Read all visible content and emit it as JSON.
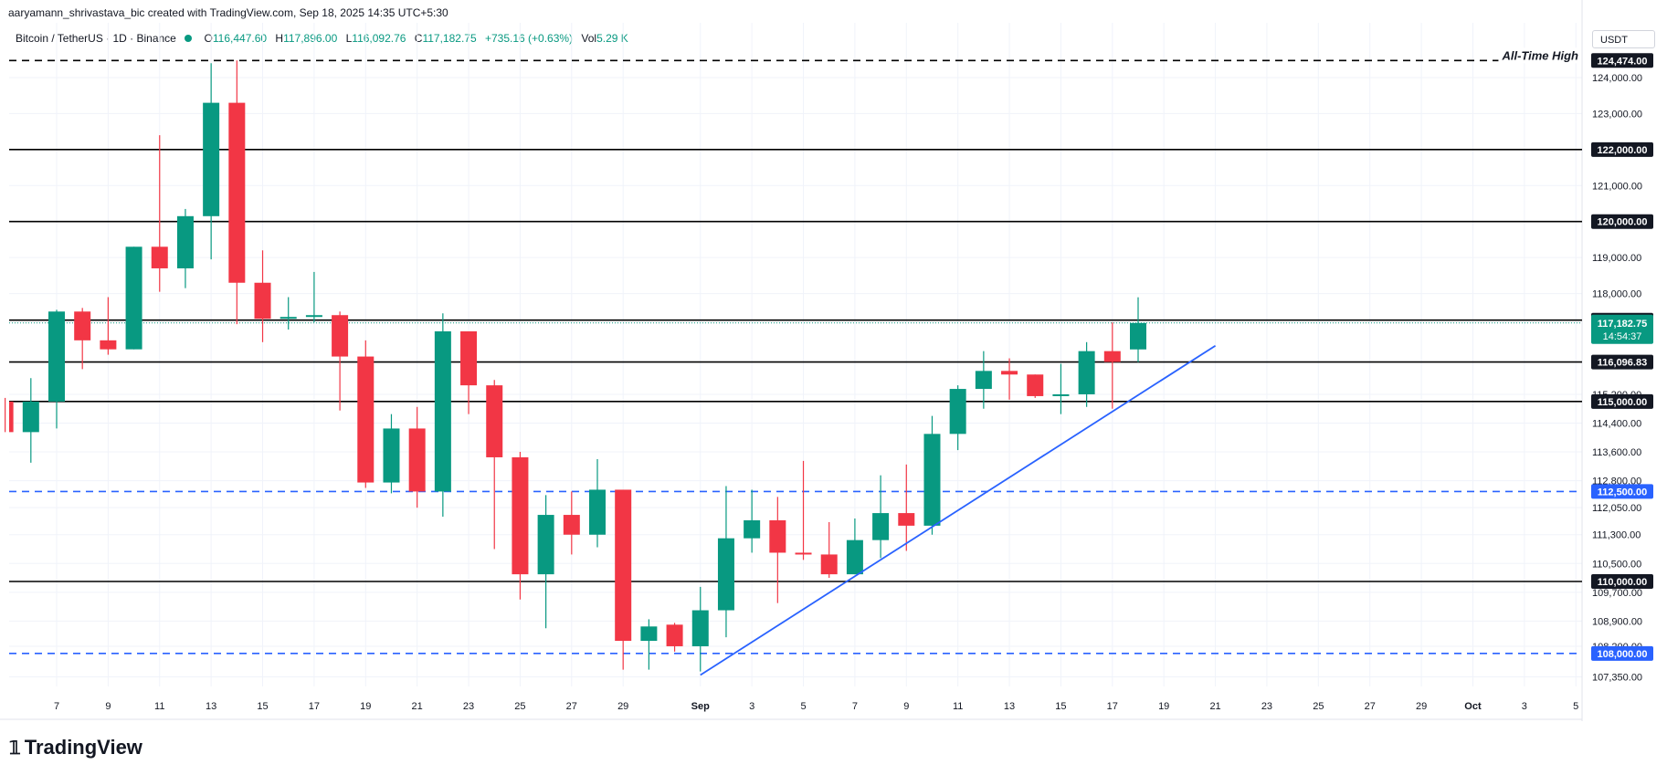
{
  "header": {
    "credit": "aaryamann_shrivastava_bic created with TradingView.com, Sep 18, 2025 14:35 UTC+5:30",
    "symbol": "Bitcoin / TetherUS · 1D · Binance",
    "open_label": "O",
    "open": "116,447.60",
    "high_label": "H",
    "high": "117,896.00",
    "low_label": "L",
    "low": "116,092.76",
    "close_label": "C",
    "close": "117,182.75",
    "change": "+735.16 (+0.63%)",
    "vol_label": "Vol",
    "vol": "5.29 K"
  },
  "currency": "USDT",
  "logo_text": "TradingView",
  "colors": {
    "up": "#089981",
    "down": "#f23645",
    "trend": "#2962ff",
    "axis_text": "#131722",
    "grid": "#f0f3fa"
  },
  "chart_data": {
    "type": "candlestick",
    "y_axis_ticks": [
      "124,000.00",
      "123,000.00",
      "121,000.00",
      "119,000.00",
      "118,000.00",
      "115,200.00",
      "114,400.00",
      "113,600.00",
      "112,800.00",
      "112,050.00",
      "111,300.00",
      "110,500.00",
      "109,700.00",
      "108,900.00",
      "108,200.00",
      "107,350.00"
    ],
    "x_axis_ticks": [
      {
        "day": 7,
        "label": "7"
      },
      {
        "day": 9,
        "label": "9"
      },
      {
        "day": 11,
        "label": "11"
      },
      {
        "day": 13,
        "label": "13"
      },
      {
        "day": 15,
        "label": "15"
      },
      {
        "day": 17,
        "label": "17"
      },
      {
        "day": 19,
        "label": "19"
      },
      {
        "day": 21,
        "label": "21"
      },
      {
        "day": 23,
        "label": "23"
      },
      {
        "day": 25,
        "label": "25"
      },
      {
        "day": 27,
        "label": "27"
      },
      {
        "day": 29,
        "label": "29"
      },
      {
        "day": 32,
        "label": "Sep"
      },
      {
        "day": 34,
        "label": "3"
      },
      {
        "day": 36,
        "label": "5"
      },
      {
        "day": 38,
        "label": "7"
      },
      {
        "day": 40,
        "label": "9"
      },
      {
        "day": 42,
        "label": "11"
      },
      {
        "day": 44,
        "label": "13"
      },
      {
        "day": 46,
        "label": "15"
      },
      {
        "day": 48,
        "label": "17"
      },
      {
        "day": 50,
        "label": "19"
      },
      {
        "day": 52,
        "label": "21"
      },
      {
        "day": 54,
        "label": "23"
      },
      {
        "day": 56,
        "label": "25"
      },
      {
        "day": 58,
        "label": "27"
      },
      {
        "day": 60,
        "label": "29"
      },
      {
        "day": 62,
        "label": "Oct"
      },
      {
        "day": 64,
        "label": "3"
      },
      {
        "day": 66,
        "label": "5"
      }
    ],
    "candles": [
      {
        "day": 5,
        "o": 115000,
        "h": 115100,
        "l": 114150,
        "c": 114150
      },
      {
        "day": 6,
        "o": 114150,
        "h": 115650,
        "l": 113300,
        "c": 115000
      },
      {
        "day": 7,
        "o": 115000,
        "h": 117550,
        "l": 114250,
        "c": 117500
      },
      {
        "day": 8,
        "o": 117500,
        "h": 117600,
        "l": 115900,
        "c": 116700
      },
      {
        "day": 9,
        "o": 116700,
        "h": 117900,
        "l": 116300,
        "c": 116450
      },
      {
        "day": 10,
        "o": 116450,
        "h": 119300,
        "l": 116450,
        "c": 119300
      },
      {
        "day": 11,
        "o": 119300,
        "h": 122400,
        "l": 118050,
        "c": 118700
      },
      {
        "day": 12,
        "o": 118700,
        "h": 120350,
        "l": 118150,
        "c": 120150
      },
      {
        "day": 13,
        "o": 120150,
        "h": 124400,
        "l": 118950,
        "c": 123300
      },
      {
        "day": 14,
        "o": 123300,
        "h": 124474,
        "l": 117150,
        "c": 118300
      },
      {
        "day": 15,
        "o": 118300,
        "h": 119200,
        "l": 116650,
        "c": 117300
      },
      {
        "day": 16,
        "o": 117300,
        "h": 117900,
        "l": 117000,
        "c": 117350
      },
      {
        "day": 17,
        "o": 117350,
        "h": 118600,
        "l": 117200,
        "c": 117400
      },
      {
        "day": 18,
        "o": 117400,
        "h": 117500,
        "l": 114750,
        "c": 116250
      },
      {
        "day": 19,
        "o": 116250,
        "h": 116700,
        "l": 112600,
        "c": 112750
      },
      {
        "day": 20,
        "o": 112750,
        "h": 114650,
        "l": 112450,
        "c": 114250
      },
      {
        "day": 21,
        "o": 114250,
        "h": 114850,
        "l": 112050,
        "c": 112500
      },
      {
        "day": 22,
        "o": 112500,
        "h": 117450,
        "l": 111800,
        "c": 116950
      },
      {
        "day": 23,
        "o": 116950,
        "h": 116950,
        "l": 114650,
        "c": 115450
      },
      {
        "day": 24,
        "o": 115450,
        "h": 115600,
        "l": 110900,
        "c": 113450
      },
      {
        "day": 25,
        "o": 113450,
        "h": 113600,
        "l": 109500,
        "c": 110200
      },
      {
        "day": 26,
        "o": 110200,
        "h": 112400,
        "l": 108700,
        "c": 111850
      },
      {
        "day": 27,
        "o": 111850,
        "h": 112500,
        "l": 110750,
        "c": 111300
      },
      {
        "day": 28,
        "o": 111300,
        "h": 113400,
        "l": 110950,
        "c": 112550
      },
      {
        "day": 29,
        "o": 112550,
        "h": 112550,
        "l": 107550,
        "c": 108350
      },
      {
        "day": 30,
        "o": 108350,
        "h": 108950,
        "l": 107550,
        "c": 108750
      },
      {
        "day": 31,
        "o": 108800,
        "h": 108850,
        "l": 108050,
        "c": 108200
      },
      {
        "day": 32,
        "o": 108200,
        "h": 109850,
        "l": 107500,
        "c": 109200
      },
      {
        "day": 33,
        "o": 109200,
        "h": 112650,
        "l": 108450,
        "c": 111200
      },
      {
        "day": 34,
        "o": 111200,
        "h": 112550,
        "l": 110800,
        "c": 111700
      },
      {
        "day": 35,
        "o": 111700,
        "h": 112350,
        "l": 109400,
        "c": 110800
      },
      {
        "day": 36,
        "o": 110800,
        "h": 113350,
        "l": 110600,
        "c": 110750
      },
      {
        "day": 37,
        "o": 110750,
        "h": 111650,
        "l": 110100,
        "c": 110200
      },
      {
        "day": 38,
        "o": 110200,
        "h": 111750,
        "l": 110200,
        "c": 111150
      },
      {
        "day": 39,
        "o": 111150,
        "h": 112950,
        "l": 110650,
        "c": 111900
      },
      {
        "day": 40,
        "o": 111900,
        "h": 113250,
        "l": 110850,
        "c": 111550
      },
      {
        "day": 41,
        "o": 111550,
        "h": 114600,
        "l": 111300,
        "c": 114100
      },
      {
        "day": 42,
        "o": 114100,
        "h": 115450,
        "l": 113650,
        "c": 115350
      },
      {
        "day": 43,
        "o": 115350,
        "h": 116400,
        "l": 114800,
        "c": 115850
      },
      {
        "day": 44,
        "o": 115850,
        "h": 116200,
        "l": 115050,
        "c": 115750
      },
      {
        "day": 45,
        "o": 115750,
        "h": 115750,
        "l": 115100,
        "c": 115150
      },
      {
        "day": 46,
        "o": 115150,
        "h": 116050,
        "l": 114650,
        "c": 115200
      },
      {
        "day": 47,
        "o": 115200,
        "h": 116650,
        "l": 114850,
        "c": 116400
      },
      {
        "day": 48,
        "o": 116400,
        "h": 117200,
        "l": 114800,
        "c": 116100
      },
      {
        "day": 49,
        "o": 116447.6,
        "h": 117896,
        "l": 116092.76,
        "c": 117182.75
      }
    ],
    "horizontal_lines": [
      {
        "value": 124474,
        "label": "124,474.00",
        "style": "dashed",
        "color": "#000000",
        "annotation": "All-Time High"
      },
      {
        "value": 122000,
        "label": "122,000.00",
        "style": "solid",
        "color": "#000000"
      },
      {
        "value": 120000,
        "label": "120,000.00",
        "style": "solid",
        "color": "#000000"
      },
      {
        "value": 117261.3,
        "label": "117,261.30",
        "style": "solid",
        "color": "#000000"
      },
      {
        "value": 116096.83,
        "label": "116,096.83",
        "style": "solid",
        "color": "#000000"
      },
      {
        "value": 115000,
        "label": "115,000.00",
        "style": "solid",
        "color": "#000000"
      },
      {
        "value": 112500,
        "label": "112,500.00",
        "style": "dashed",
        "color": "#2962ff"
      },
      {
        "value": 110000,
        "label": "110,000.00",
        "style": "solid",
        "color": "#000000"
      },
      {
        "value": 108000,
        "label": "108,000.00",
        "style": "dashed",
        "color": "#2962ff"
      }
    ],
    "current_price": {
      "value": 117182.75,
      "label": "117,182.75",
      "countdown": "14:54:37"
    },
    "trendline": {
      "from": {
        "day": 32,
        "value": 107400
      },
      "to": {
        "day": 52,
        "value": 116550
      }
    }
  }
}
